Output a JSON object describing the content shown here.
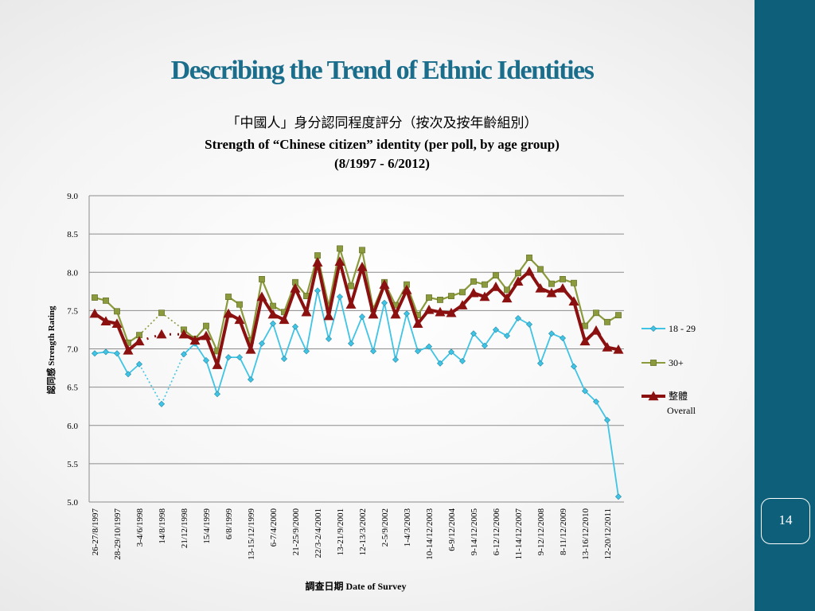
{
  "slide": {
    "title": "Describing the Trend of Ethnic Identities",
    "page_number": "14"
  },
  "colors": {
    "sidebar": "#0d5f7a",
    "title": "#1a6e8c",
    "series_18_29": "#3fc4e6",
    "series_30plus": "#8a9a3c",
    "series_overall": "#8b1010"
  },
  "chart_data": {
    "type": "line",
    "title_zh": "「中國人」身分認同程度評分（按次及按年齡組別）",
    "title_en": "Strength of “Chinese citizen” identity (per poll, by age group)",
    "subtitle": "(8/1997 - 6/2012)",
    "ylabel": "認同感 Strength Rating",
    "xlabel": "調查日期 Date of Survey",
    "ylim": [
      5.0,
      9.0
    ],
    "yticks": [
      "9.0",
      "8.5",
      "8.0",
      "7.5",
      "7.0",
      "6.5",
      "6.0",
      "5.5",
      "5.0"
    ],
    "grid": true,
    "legend_position": "right",
    "tick_labels": [
      "26-27/8/1997",
      "28-29/10/1997",
      "3-4/6/1998",
      "14/8/1998",
      "21/12/1998",
      "15/4/1999",
      "6/8/1999",
      "13-15/12/1999",
      "6-7/4/2000",
      "21-25/9/2000",
      "22/3-2/4/2001",
      "13-21/9/2001",
      "12-13/3/2002",
      "2-5/9/2002",
      "1-4/3/2003",
      "10-14/12/2003",
      "6-9/12/2004",
      "9-14/12/2005",
      "6-12/12/2006",
      "11-14/12/2007",
      "9-12/12/2008",
      "8-11/12/2009",
      "13-16/12/2010",
      "12-20/12/2011"
    ],
    "series": [
      {
        "name": "18 - 29",
        "values": [
          6.94,
          6.96,
          6.94,
          6.67,
          6.8,
          null,
          6.28,
          null,
          6.93,
          7.07,
          6.85,
          6.41,
          6.89,
          6.89,
          6.6,
          7.07,
          7.33,
          6.87,
          7.29,
          6.97,
          7.76,
          7.13,
          7.68,
          7.07,
          7.42,
          6.97,
          7.6,
          6.86,
          7.46,
          6.97,
          7.03,
          6.81,
          6.96,
          6.84,
          7.2,
          7.04,
          7.25,
          7.17,
          7.4,
          7.32,
          6.81,
          7.2,
          7.14,
          6.77,
          6.45,
          6.31,
          6.07,
          5.07
        ]
      },
      {
        "name": "30+",
        "values": [
          7.67,
          7.63,
          7.49,
          7.08,
          7.18,
          null,
          7.47,
          null,
          7.25,
          7.13,
          7.3,
          6.97,
          7.68,
          7.58,
          7.11,
          7.91,
          7.56,
          7.48,
          7.87,
          7.69,
          8.22,
          7.56,
          8.31,
          7.82,
          8.29,
          7.52,
          7.87,
          7.57,
          7.84,
          7.44,
          7.67,
          7.64,
          7.69,
          7.74,
          7.88,
          7.84,
          7.96,
          7.77,
          7.99,
          8.19,
          8.04,
          7.85,
          7.91,
          7.86,
          7.3,
          7.47,
          7.35,
          7.44
        ]
      },
      {
        "name": "整體",
        "name2": "Overall",
        "values": [
          7.46,
          7.36,
          7.33,
          6.98,
          7.1,
          null,
          7.19,
          null,
          7.19,
          7.11,
          7.17,
          6.79,
          7.46,
          7.38,
          6.99,
          7.68,
          7.45,
          7.38,
          7.79,
          7.48,
          8.13,
          7.43,
          8.14,
          7.58,
          8.07,
          7.45,
          7.84,
          7.45,
          7.77,
          7.33,
          7.51,
          7.48,
          7.47,
          7.57,
          7.73,
          7.68,
          7.81,
          7.66,
          7.88,
          8.01,
          7.79,
          7.73,
          7.79,
          7.62,
          7.1,
          7.24,
          7.02,
          6.99
        ]
      }
    ]
  }
}
